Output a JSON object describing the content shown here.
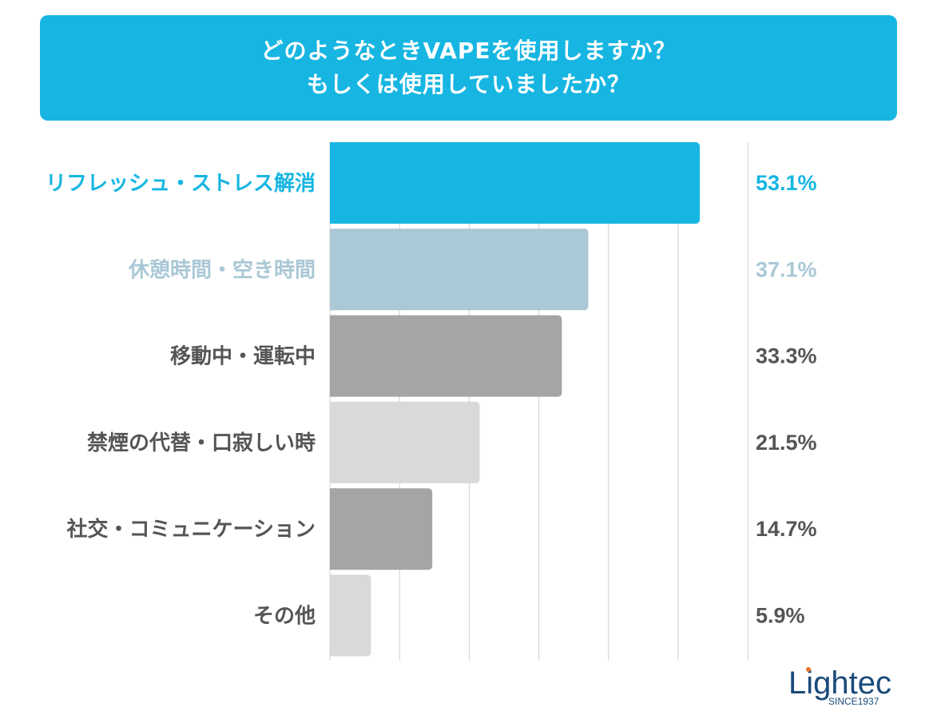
{
  "title": {
    "line1": "どのようなときVAPEを使用しますか？",
    "line2": "もしくは使用していましたか？"
  },
  "colors": {
    "title_bg": "#17b6e2",
    "grid": "#d0d0d0"
  },
  "chart_data": {
    "type": "bar",
    "orientation": "horizontal",
    "title": "どのようなときVAPEを使用しますか？ もしくは使用していましたか？",
    "xlabel": "",
    "ylabel": "",
    "xlim": [
      0,
      60
    ],
    "grid": true,
    "categories": [
      "リフレッシュ・ストレス解消",
      "休憩時間・空き時間",
      "移動中・運転中",
      "禁煙の代替・口寂しい時",
      "社交・コミュニケーション",
      "その他"
    ],
    "values": [
      53.1,
      37.1,
      33.3,
      21.5,
      14.7,
      5.9
    ],
    "value_labels": [
      "53.1%",
      "37.1%",
      "33.3%",
      "21.5%",
      "14.7%",
      "5.9%"
    ],
    "bar_colors": [
      "#17b6e2",
      "#aac8d5",
      "#a5a5a5",
      "#d9d9d9",
      "#a5a5a5",
      "#d9d9d9"
    ],
    "label_colors": [
      "#17b6e2",
      "#aac8d5",
      "#555555",
      "#555555",
      "#555555",
      "#555555"
    ]
  },
  "logo": {
    "name": "Lightec",
    "tagline": "SINCE1937",
    "colors": {
      "text": "#1a4a7a",
      "dot": "#e8742a"
    }
  }
}
